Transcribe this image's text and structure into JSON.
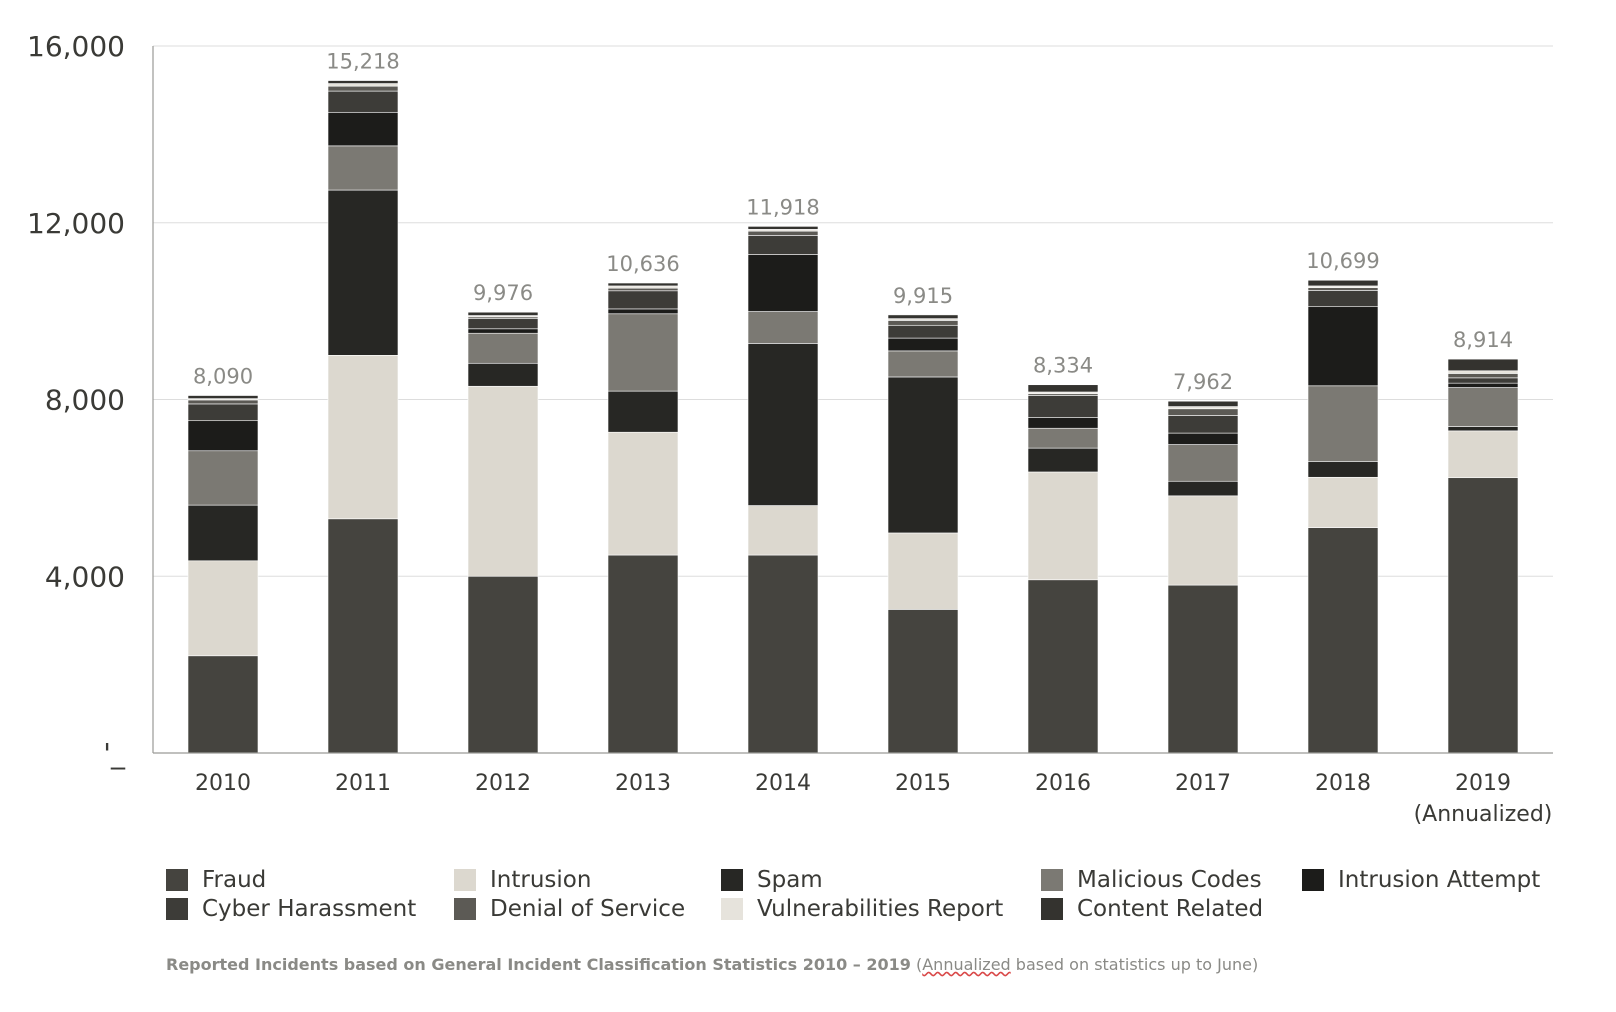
{
  "chart_data": {
    "type": "bar",
    "stacked": true,
    "categories": [
      "2010",
      "2011",
      "2012",
      "2013",
      "2014",
      "2015",
      "2016",
      "2017",
      "2018",
      "2019\n(Annualized)"
    ],
    "totals": [
      "8,090",
      "15,218",
      "9,976",
      "10,636",
      "11,918",
      "9,915",
      "8,334",
      "7,962",
      "10,699",
      "8,914"
    ],
    "yticks": [
      "'_",
      "4,000",
      "8,000",
      "12,000",
      "16,000"
    ],
    "ytick_values": [
      0,
      4000,
      8000,
      12000,
      16000
    ],
    "ylim": [
      0,
      16000
    ],
    "grid": true,
    "legend_position": "bottom",
    "series": [
      {
        "name": "Fraud",
        "color": "#45443f",
        "values": [
          2200,
          5300,
          4000,
          4480,
          4480,
          3250,
          3920,
          3800,
          5100,
          6230
        ]
      },
      {
        "name": "Intrusion",
        "color": "#dcd8cf",
        "values": [
          2150,
          3700,
          4300,
          2780,
          1120,
          1730,
          2440,
          2020,
          1140,
          1060
        ]
      },
      {
        "name": "Spam",
        "color": "#272724",
        "values": [
          1260,
          3740,
          520,
          930,
          3670,
          3530,
          540,
          330,
          360,
          100
        ]
      },
      {
        "name": "Malicious Codes",
        "color": "#7b7973",
        "values": [
          1230,
          1000,
          680,
          1750,
          720,
          590,
          450,
          830,
          1710,
          880
        ]
      },
      {
        "name": "Intrusion Attempt",
        "color": "#1c1c1a",
        "values": [
          680,
          760,
          100,
          110,
          1290,
          290,
          240,
          260,
          1790,
          100
        ]
      },
      {
        "name": "Cyber Harassment",
        "color": "#3d3c38",
        "values": [
          380,
          480,
          230,
          410,
          430,
          290,
          500,
          400,
          370,
          120
        ]
      },
      {
        "name": "Denial of Service",
        "color": "#5c5a55",
        "values": [
          90,
          110,
          40,
          60,
          100,
          110,
          40,
          150,
          60,
          100
        ]
      },
      {
        "name": "Vulnerabilities Report",
        "color": "#e6e3dc",
        "values": [
          30,
          60,
          30,
          50,
          40,
          40,
          40,
          50,
          40,
          60
        ]
      },
      {
        "name": "Content Related",
        "color": "#34332f",
        "values": [
          70,
          68,
          76,
          66,
          68,
          85,
          164,
          122,
          129,
          264
        ]
      }
    ]
  },
  "legend": {
    "items": [
      {
        "label": "Fraud",
        "color": "#45443f"
      },
      {
        "label": "Intrusion",
        "color": "#dcd8cf"
      },
      {
        "label": "Spam",
        "color": "#272724"
      },
      {
        "label": "Malicious Codes",
        "color": "#7b7973"
      },
      {
        "label": "Intrusion Attempt",
        "color": "#1c1c1a"
      },
      {
        "label": "Cyber Harassment",
        "color": "#3d3c38"
      },
      {
        "label": "Denial of Service",
        "color": "#5c5a55"
      },
      {
        "label": "Vulnerabilities Report",
        "color": "#e6e3dc"
      },
      {
        "label": "Content Related",
        "color": "#34332f"
      }
    ]
  },
  "caption": {
    "bold": "Reported Incidents based on General Incident Classification Statistics 2010 – 2019",
    "paren_open": " (",
    "underlined": "Annualized",
    "rest": " based on statistics up to June)"
  }
}
